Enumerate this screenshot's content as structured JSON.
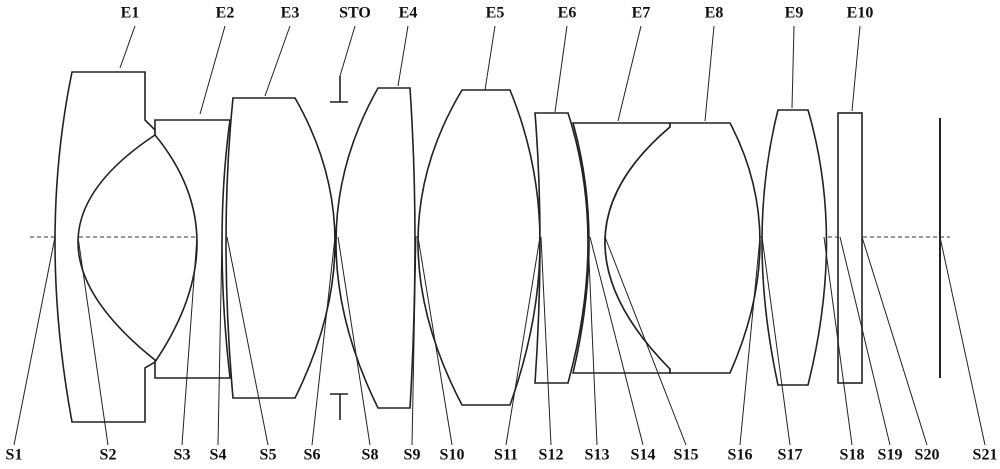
{
  "elements": [
    "E1",
    "E2",
    "E3",
    "E4",
    "E5",
    "E6",
    "E7",
    "E8",
    "E9",
    "E10"
  ],
  "stop": "STO",
  "surfaces": [
    "S1",
    "S2",
    "S3",
    "S4",
    "S5",
    "S6",
    "S8",
    "S9",
    "S10",
    "S11",
    "S12",
    "S13",
    "S14",
    "S15",
    "S16",
    "S17",
    "S18",
    "S19",
    "S20",
    "S21"
  ]
}
